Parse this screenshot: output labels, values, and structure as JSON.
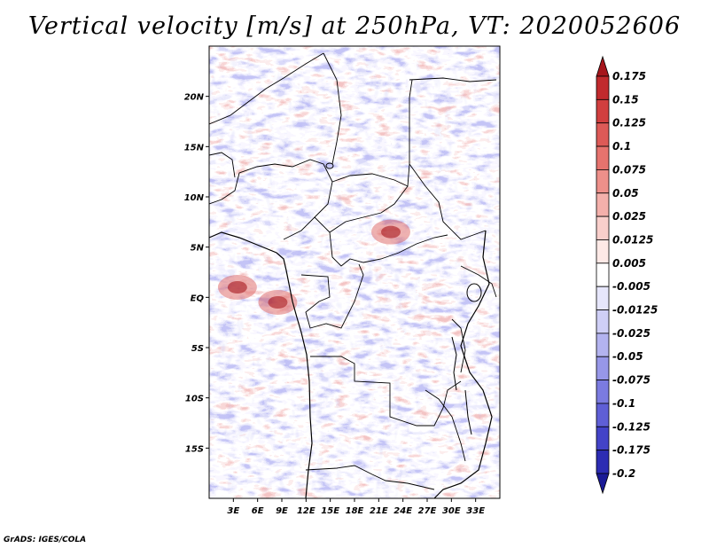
{
  "title": "Vertical velocity [m/s] at 250hPa, VT: 2020052606",
  "footer": "GrADS: IGES/COLA",
  "map": {
    "projection": "lat-lon",
    "lon_range": [
      0,
      36
    ],
    "lat_range": [
      -20,
      25
    ],
    "lon_ticks": [
      "3E",
      "6E",
      "9E",
      "12E",
      "15E",
      "18E",
      "21E",
      "24E",
      "27E",
      "30E",
      "33E"
    ],
    "lat_ticks": [
      "20N",
      "15N",
      "10N",
      "5N",
      "EQ",
      "5S",
      "10S",
      "15S"
    ],
    "field": "vertical velocity",
    "level": "250hPa"
  },
  "colorbar": {
    "labels": [
      "0.175",
      "0.15",
      "0.125",
      "0.1",
      "0.075",
      "0.05",
      "0.025",
      "0.0125",
      "0.005",
      "-0.005",
      "-0.0125",
      "-0.025",
      "-0.05",
      "-0.075",
      "-0.1",
      "-0.125",
      "-0.175",
      "-0.2"
    ],
    "colors": [
      "#a6161c",
      "#c12a2d",
      "#d13f3f",
      "#dd5a57",
      "#e6736e",
      "#ee908a",
      "#f4b0ab",
      "#f9cfcb",
      "#fde9e6",
      "#ffffff",
      "#e6e6fb",
      "#cfcff6",
      "#b3b3ef",
      "#9797e8",
      "#7b7be0",
      "#5f5fd6",
      "#4343c8",
      "#2c2cb3",
      "#1a1a96"
    ]
  },
  "hotspots": [
    {
      "name": "hotspot-gulf-of-guinea",
      "lon": 3.5,
      "lat": 1.0,
      "label": ""
    },
    {
      "name": "hotspot-gabon-coast",
      "lon": 8.5,
      "lat": -0.5,
      "label": ""
    },
    {
      "name": "hotspot-central-african-republic",
      "lon": 22.5,
      "lat": 6.5,
      "label": ""
    }
  ]
}
